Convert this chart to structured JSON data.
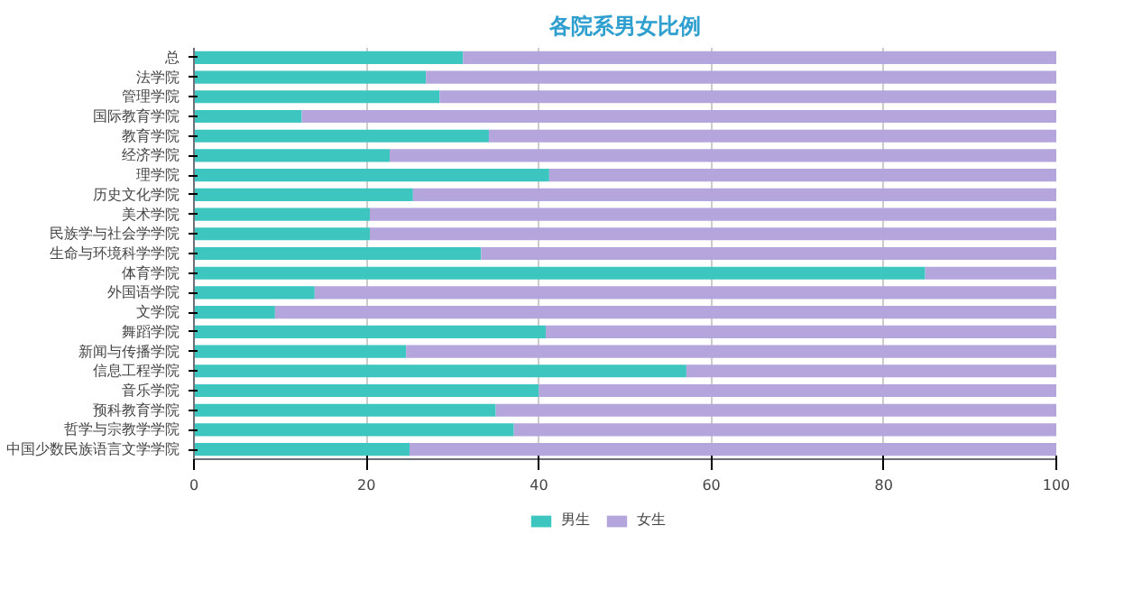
{
  "chart_data": {
    "type": "bar",
    "title": "各院系男女比例",
    "orientation": "horizontal",
    "stacked": true,
    "categories": [
      "总",
      "法学院",
      "管理学院",
      "国际教育学院",
      "教育学院",
      "经济学院",
      "理学院",
      "历史文化学院",
      "美术学院",
      "民族学与社会学学院",
      "生命与环境科学学院",
      "体育学院",
      "外国语学院",
      "文学院",
      "舞蹈学院",
      "新闻与传播学院",
      "信息工程学院",
      "音乐学院",
      "预科教育学院",
      "哲学与宗教学学院",
      "中国少数民族语言文学学院"
    ],
    "series": [
      {
        "name": "男生",
        "color": "#3cc6bf",
        "values": [
          31.2,
          26.9,
          28.5,
          12.5,
          34.2,
          22.7,
          41.2,
          25.4,
          20.4,
          20.4,
          33.3,
          84.8,
          14.0,
          9.4,
          40.8,
          24.6,
          57.1,
          40.0,
          35.0,
          37.1,
          25.0
        ]
      },
      {
        "name": "女生",
        "color": "#b4a5dc",
        "values": [
          68.8,
          73.1,
          71.5,
          87.5,
          65.8,
          77.3,
          58.8,
          74.6,
          79.6,
          79.6,
          66.7,
          15.2,
          86.0,
          90.6,
          59.2,
          75.4,
          42.9,
          60.0,
          65.0,
          62.9,
          75.0
        ]
      }
    ],
    "xlim": [
      0,
      100
    ],
    "xticks": [
      0,
      20,
      40,
      60,
      80,
      100
    ],
    "grid": "x",
    "legend": "bottom"
  }
}
